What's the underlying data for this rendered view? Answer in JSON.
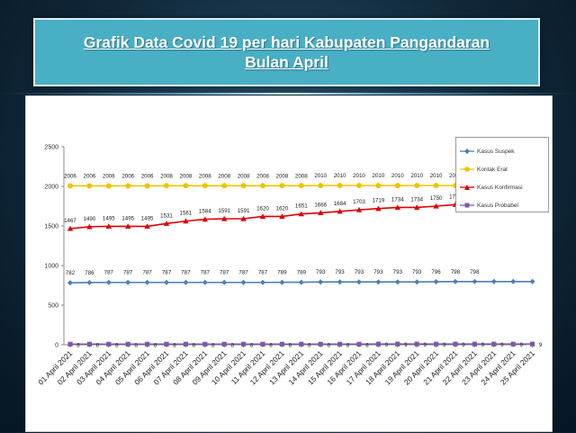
{
  "header": {
    "title_line1": "Grafik Data Covid 19 per hari Kabupaten Pangandaran",
    "title_line2": "Bulan April"
  },
  "chart_data": {
    "type": "line",
    "title": "Grafik Data Covid 19 per hari Kabupaten Pangandaran Bulan April",
    "xlabel": "",
    "ylabel": "",
    "ylim": [
      0,
      2500
    ],
    "yticks": [
      0,
      500,
      1000,
      1500,
      2000,
      2500
    ],
    "grid": false,
    "legend": "right",
    "categories": [
      "01 April 2021",
      "02 April 2021",
      "03 April 2021",
      "04 April 2021",
      "05 April 2021",
      "06 April 2021",
      "07 April 2021",
      "08 April 2021",
      "09 April 2021",
      "10 April 2021",
      "11 April 2021",
      "12 April 2021",
      "13 April 2021",
      "14 April 2021",
      "15 April 2021",
      "16 April 2021",
      "17 April 2021",
      "18 April 2021",
      "19 April 2021",
      "20 April 2021",
      "21 April 2021",
      "22 April 2021",
      "23 April 2021",
      "24 April 2021",
      "25 April 2021"
    ],
    "series": [
      {
        "name": "Kasus Suspek",
        "color": "#4a7ebb",
        "marker": "diamond",
        "values": [
          782,
          786,
          787,
          787,
          787,
          787,
          787,
          787,
          787,
          787,
          787,
          789,
          789,
          793,
          793,
          793,
          793,
          793,
          793,
          796,
          798,
          798,
          798,
          798,
          798
        ],
        "labels": [
          "782",
          "786",
          "787",
          "787",
          "787",
          "787",
          "787",
          "787",
          "787",
          "787",
          "787",
          "789",
          "789",
          "793",
          "793",
          "793",
          "793",
          "793",
          "793",
          "796",
          "798",
          "798",
          "",
          "",
          ""
        ]
      },
      {
        "name": "Kontak Erat",
        "color": "#f2c200",
        "marker": "circle",
        "values": [
          2006,
          2006,
          2006,
          2006,
          2006,
          2008,
          2008,
          2008,
          2008,
          2008,
          2008,
          2008,
          2008,
          2010,
          2010,
          2010,
          2010,
          2010,
          2010,
          2010,
          2010,
          2010,
          2010,
          2010,
          2010
        ],
        "labels": [
          "2006",
          "2006",
          "2006",
          "2006",
          "2006",
          "2008",
          "2008",
          "2008",
          "2008",
          "2008",
          "2008",
          "2008",
          "2008",
          "2010",
          "2010",
          "2010",
          "2010",
          "2010",
          "2010",
          "2010",
          "2010",
          "2010",
          "2010",
          "2010",
          "2010"
        ]
      },
      {
        "name": "Kasus Konfirmasi",
        "color": "#e00000",
        "marker": "triangle",
        "values": [
          1467,
          1490,
          1495,
          1495,
          1495,
          1531,
          1561,
          1584,
          1591,
          1591,
          1620,
          1620,
          1651,
          1666,
          1684,
          1703,
          1719,
          1734,
          1734,
          1750,
          1769,
          1809,
          1822,
          1845,
          1849
        ],
        "labels": [
          "1467",
          "1490",
          "1495",
          "1495",
          "1495",
          "1531",
          "1561",
          "1584",
          "1591",
          "1591",
          "1620",
          "1620",
          "1651",
          "1666",
          "1684",
          "1703",
          "1719",
          "1734",
          "1734",
          "1750",
          "1769",
          "1809",
          "1822",
          "1845",
          "1849"
        ]
      },
      {
        "name": "Kasus Probabel",
        "color": "#7b5aa6",
        "marker": "square",
        "values": [
          8,
          8,
          8,
          8,
          8,
          8,
          8,
          8,
          8,
          8,
          8,
          8,
          8,
          8,
          8,
          8,
          9,
          9,
          9,
          9,
          9,
          9,
          9,
          9,
          9
        ],
        "labels": [
          "8",
          "8",
          "8",
          "8",
          "8",
          "8",
          "8",
          "8",
          "8",
          "8",
          "8",
          "8",
          "8",
          "8",
          "8",
          "8",
          "9",
          "9",
          "9",
          "9",
          "9",
          "9",
          "9",
          "9",
          "9"
        ]
      }
    ]
  }
}
